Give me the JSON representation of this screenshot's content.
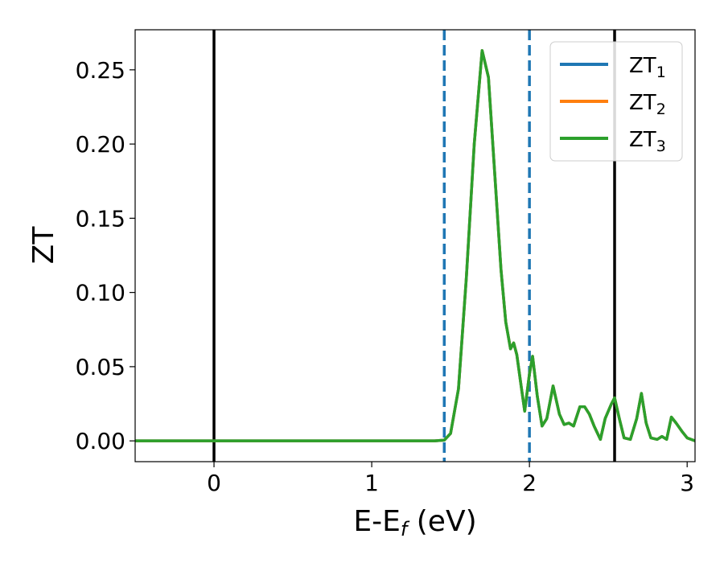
{
  "chart_data": {
    "type": "line",
    "xlabel": "E-E",
    "xlabel_sub": "f",
    "xlabel_unit": " (eV)",
    "ylabel": "ZT",
    "xlim": [
      -0.5,
      3.05
    ],
    "ylim": [
      -0.014,
      0.277
    ],
    "x_ticks": [
      0,
      1,
      2,
      3
    ],
    "x_tick_labels": [
      "0",
      "1",
      "2",
      "3"
    ],
    "y_ticks": [
      0.0,
      0.05,
      0.1,
      0.15,
      0.2,
      0.25
    ],
    "y_tick_labels": [
      "0.00",
      "0.05",
      "0.10",
      "0.15",
      "0.20",
      "0.25"
    ],
    "grid": false,
    "legend_position": "top-right",
    "vlines": [
      {
        "x": 0.0,
        "style": "solid",
        "color": "#000000"
      },
      {
        "x": 1.46,
        "style": "dashed",
        "color": "#1f77b4"
      },
      {
        "x": 2.0,
        "style": "dashed",
        "color": "#1f77b4"
      },
      {
        "x": 2.54,
        "style": "solid",
        "color": "#000000"
      }
    ],
    "series": [
      {
        "name": "ZT",
        "sub": "1",
        "color": "#1f77b4",
        "x": [
          -0.5,
          1.4,
          1.46,
          1.5,
          1.55,
          1.6,
          1.65,
          1.7,
          1.74,
          1.78,
          1.82,
          1.85,
          1.88,
          1.9,
          1.92,
          1.95,
          1.97,
          2.0,
          2.02,
          2.05,
          2.08,
          2.11,
          2.15,
          2.19,
          2.22,
          2.25,
          2.28,
          2.32,
          2.35,
          2.38,
          2.41,
          2.45,
          2.48,
          2.52,
          2.54,
          2.57,
          2.6,
          2.64,
          2.68,
          2.71,
          2.74,
          2.77,
          2.81,
          2.84,
          2.87,
          2.9,
          2.93,
          2.97,
          3.0,
          3.05
        ],
        "y": [
          0.0,
          0.0,
          0.0005,
          0.005,
          0.035,
          0.11,
          0.2,
          0.263,
          0.245,
          0.18,
          0.115,
          0.08,
          0.062,
          0.066,
          0.058,
          0.035,
          0.02,
          0.045,
          0.057,
          0.03,
          0.01,
          0.015,
          0.037,
          0.018,
          0.011,
          0.012,
          0.01,
          0.023,
          0.023,
          0.018,
          0.01,
          0.001,
          0.015,
          0.025,
          0.029,
          0.015,
          0.002,
          0.001,
          0.015,
          0.032,
          0.012,
          0.002,
          0.001,
          0.003,
          0.001,
          0.016,
          0.012,
          0.006,
          0.002,
          0.0
        ]
      },
      {
        "name": "ZT",
        "sub": "2",
        "color": "#ff7f0e",
        "x": [
          -0.5,
          1.4,
          1.46,
          1.5,
          1.55,
          1.6,
          1.65,
          1.7,
          1.74,
          1.78,
          1.82,
          1.85,
          1.88,
          1.9,
          1.92,
          1.95,
          1.97,
          2.0,
          2.02,
          2.05,
          2.08,
          2.11,
          2.15,
          2.19,
          2.22,
          2.25,
          2.28,
          2.32,
          2.35,
          2.38,
          2.41,
          2.45,
          2.48,
          2.52,
          2.54,
          2.57,
          2.6,
          2.64,
          2.68,
          2.71,
          2.74,
          2.77,
          2.81,
          2.84,
          2.87,
          2.9,
          2.93,
          2.97,
          3.0,
          3.05
        ],
        "y": [
          0.0,
          0.0,
          0.0005,
          0.005,
          0.035,
          0.11,
          0.2,
          0.263,
          0.245,
          0.18,
          0.115,
          0.08,
          0.062,
          0.066,
          0.058,
          0.035,
          0.02,
          0.045,
          0.057,
          0.03,
          0.01,
          0.015,
          0.037,
          0.018,
          0.011,
          0.012,
          0.01,
          0.023,
          0.023,
          0.018,
          0.01,
          0.001,
          0.015,
          0.025,
          0.029,
          0.015,
          0.002,
          0.001,
          0.015,
          0.032,
          0.012,
          0.002,
          0.001,
          0.003,
          0.001,
          0.016,
          0.012,
          0.006,
          0.002,
          0.0
        ]
      },
      {
        "name": "ZT",
        "sub": "3",
        "color": "#2ca02c",
        "x": [
          -0.5,
          1.4,
          1.46,
          1.5,
          1.55,
          1.6,
          1.65,
          1.7,
          1.74,
          1.78,
          1.82,
          1.85,
          1.88,
          1.9,
          1.92,
          1.95,
          1.97,
          2.0,
          2.02,
          2.05,
          2.08,
          2.11,
          2.15,
          2.19,
          2.22,
          2.25,
          2.28,
          2.32,
          2.35,
          2.38,
          2.41,
          2.45,
          2.48,
          2.52,
          2.54,
          2.57,
          2.6,
          2.64,
          2.68,
          2.71,
          2.74,
          2.77,
          2.81,
          2.84,
          2.87,
          2.9,
          2.93,
          2.97,
          3.0,
          3.05
        ],
        "y": [
          0.0,
          0.0,
          0.0005,
          0.005,
          0.035,
          0.11,
          0.2,
          0.263,
          0.245,
          0.18,
          0.115,
          0.08,
          0.062,
          0.066,
          0.058,
          0.035,
          0.02,
          0.045,
          0.057,
          0.03,
          0.01,
          0.015,
          0.037,
          0.018,
          0.011,
          0.012,
          0.01,
          0.023,
          0.023,
          0.018,
          0.01,
          0.001,
          0.015,
          0.025,
          0.029,
          0.015,
          0.002,
          0.001,
          0.015,
          0.032,
          0.012,
          0.002,
          0.001,
          0.003,
          0.001,
          0.016,
          0.012,
          0.006,
          0.002,
          0.0
        ]
      }
    ]
  }
}
